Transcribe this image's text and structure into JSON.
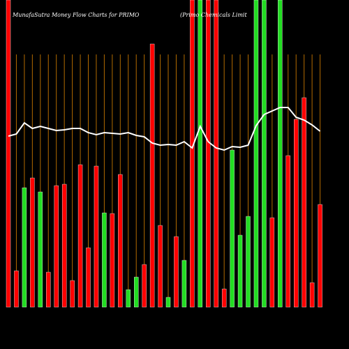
{
  "chart_data": {
    "type": "bar-line",
    "title": "MunafaSutra  Money Flow  Charts for PRIMO",
    "subtitle": "(Primo Chemicals Limit",
    "background": "#000000",
    "grid": true,
    "grid_color": "#b36b00",
    "categories": [
      null,
      null,
      null,
      null,
      null,
      null,
      null,
      null,
      null,
      null,
      null,
      null,
      null,
      null,
      null,
      null,
      null,
      null,
      null,
      null,
      null,
      null,
      null,
      null,
      null,
      null,
      null,
      null,
      null,
      null,
      null,
      null,
      null,
      null,
      null,
      null,
      null,
      null,
      null,
      null
    ],
    "ylim": [
      0,
      440
    ],
    "bars": {
      "values": [
        440,
        52,
        171,
        185,
        165,
        50,
        174,
        176,
        38,
        204,
        85,
        202,
        135,
        134,
        190,
        25,
        43,
        61,
        377,
        117,
        14,
        101,
        67,
        440,
        440,
        440,
        440,
        26,
        225,
        103,
        130,
        440,
        440,
        128,
        440,
        217,
        269,
        300,
        35,
        147
      ],
      "colors": [
        "#ff0000",
        "#ff0000",
        "#22dd22",
        "#ff0000",
        "#22dd22",
        "#ff0000",
        "#ff0000",
        "#ff0000",
        "#ff0000",
        "#ff0000",
        "#ff0000",
        "#ff0000",
        "#22dd22",
        "#ff0000",
        "#ff0000",
        "#22dd22",
        "#22dd22",
        "#ff0000",
        "#ff0000",
        "#ff0000",
        "#22dd22",
        "#ff0000",
        "#22dd22",
        "#ff0000",
        "#22dd22",
        "#ff0000",
        "#ff0000",
        "#ff0000",
        "#22dd22",
        "#22dd22",
        "#22dd22",
        "#22dd22",
        "#22dd22",
        "#ff0000",
        "#22dd22",
        "#ff0000",
        "#ff0000",
        "#ff0000",
        "#ff0000",
        "#ff0000"
      ]
    },
    "line": {
      "color": "#ffffff",
      "values": [
        245,
        248,
        264,
        256,
        259,
        256,
        253,
        254,
        256,
        256,
        250,
        247,
        250,
        249,
        248,
        250,
        246,
        244,
        235,
        232,
        233,
        232,
        237,
        228,
        259,
        237,
        228,
        225,
        230,
        229,
        232,
        260,
        276,
        281,
        286,
        286,
        272,
        268,
        261,
        252
      ]
    }
  }
}
